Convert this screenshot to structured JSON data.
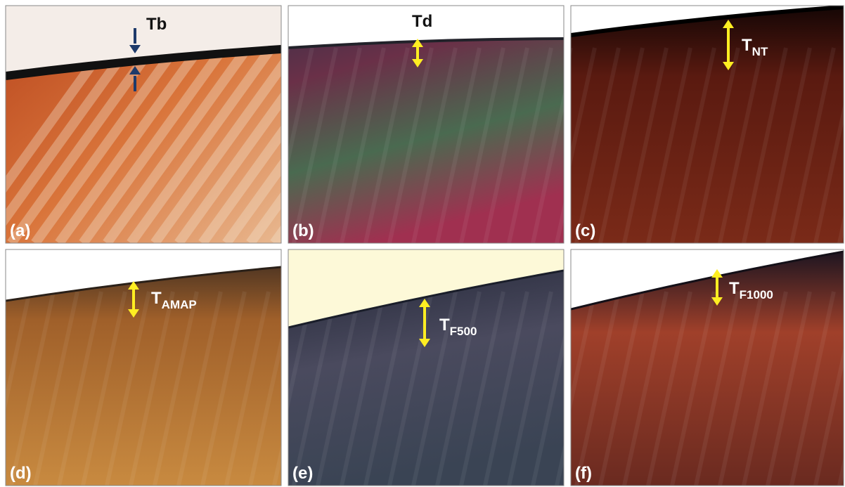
{
  "panels": [
    {
      "label": "(a)",
      "annotation": "Tb"
    },
    {
      "label": "(b)",
      "annotation": "Td"
    },
    {
      "label": "(c)",
      "annotation": "T",
      "subscript": "NT"
    },
    {
      "label": "(d)",
      "annotation": "T",
      "subscript": "AMAP"
    },
    {
      "label": "(e)",
      "annotation": "T",
      "subscript": "F500"
    },
    {
      "label": "(f)",
      "annotation": "T",
      "subscript": "F1000"
    }
  ]
}
